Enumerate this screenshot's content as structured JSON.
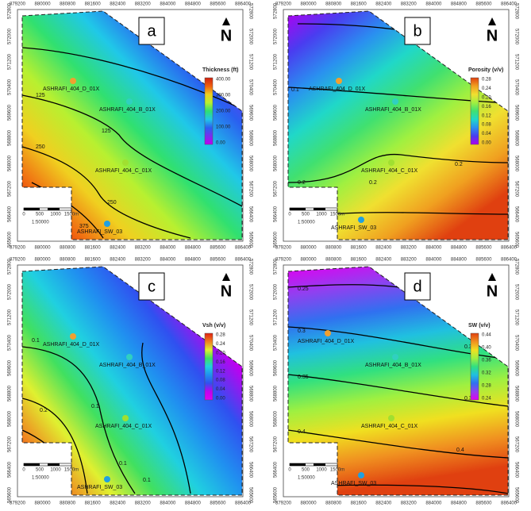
{
  "axes": {
    "x_ticks": [
      "879200",
      "880000",
      "880800",
      "881600",
      "882400",
      "883200",
      "884000",
      "884800",
      "885600",
      "886400"
    ],
    "y_ticks": [
      "572800",
      "572000",
      "571200",
      "570400",
      "569600",
      "568800",
      "568000",
      "567200",
      "566400",
      "565600"
    ]
  },
  "panels": [
    {
      "letter": "a",
      "north": "N",
      "legend_title": "Thickness (ft)",
      "legend_ticks": [
        "400.00",
        "300.00",
        "200.00",
        "100.00",
        "0.00"
      ],
      "wells": [
        "ASHRAFI_404_D_01X",
        "ASHRAFI_404_B_01X",
        "ASHRAFI_404_C_01X",
        "ASHRAFI_SW_03"
      ],
      "contour_labels": [
        "125",
        "250",
        "125",
        "250",
        "375"
      ],
      "scale_labels": [
        "0",
        "500",
        "1000",
        "1500m"
      ],
      "scale_ratio": "1:50000"
    },
    {
      "letter": "b",
      "north": "N",
      "legend_title": "Porosity (v/v)",
      "legend_ticks": [
        "0.28",
        "0.24",
        "0.20",
        "0.16",
        "0.12",
        "0.08",
        "0.04",
        "0.00"
      ],
      "wells": [
        "ASHRAFI_404_D_01X",
        "ASHRAFI_404_B_01X",
        "ASHRAFI_404_C_01X",
        "ASHRAFI_SW_03"
      ],
      "contour_labels": [
        "0.1",
        "0.2",
        "0.2",
        "0.2"
      ],
      "scale_labels": [
        "0",
        "500",
        "1000",
        "1500m"
      ],
      "scale_ratio": "1:50000"
    },
    {
      "letter": "c",
      "north": "N",
      "legend_title": "Vsh (v/v)",
      "legend_ticks": [
        "0.28",
        "0.24",
        "0.20",
        "0.16",
        "0.12",
        "0.08",
        "0.04",
        "0.00"
      ],
      "wells": [
        "ASHRAFI_404_D_01X",
        "ASHRAFI_404_B_01X",
        "ASHRAFI_404_C_01X",
        "ASHRAFI_SW_03"
      ],
      "contour_labels": [
        "0.1",
        "0.1",
        "0.2",
        "0.1",
        "0.1"
      ],
      "scale_labels": [
        "0",
        "500",
        "1000",
        "1500m"
      ],
      "scale_ratio": "1:50000"
    },
    {
      "letter": "d",
      "north": "N",
      "legend_title": "SW (v/v)",
      "legend_ticks": [
        "0.44",
        "0.40",
        "0.36",
        "0.32",
        "0.28",
        "0.24"
      ],
      "wells": [
        "ASHRAFI_404_D_01X",
        "ASHRAFI_404_B_01X",
        "ASHRAFI_404_C_01X",
        "ASHRAFI_SW_03"
      ],
      "contour_labels": [
        "0.25",
        "0.3",
        "0.3",
        "0.35",
        "0.35",
        "0.4",
        "0.4"
      ],
      "scale_labels": [
        "0",
        "500",
        "1000",
        "1500m"
      ],
      "scale_ratio": "1:50000"
    }
  ]
}
